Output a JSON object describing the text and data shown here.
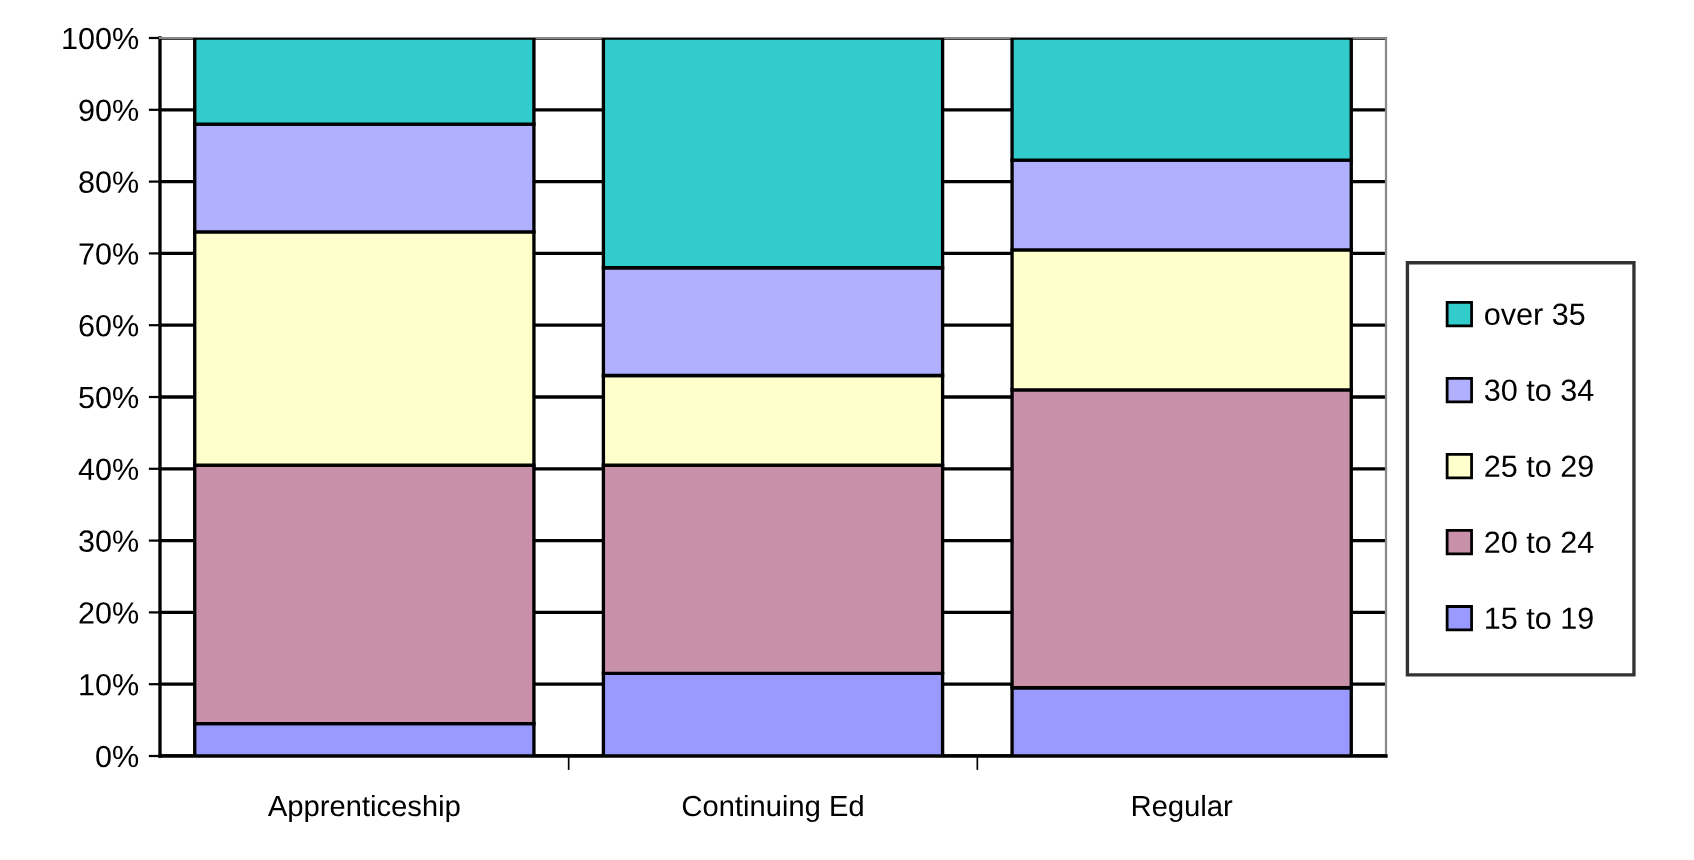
{
  "chart_data": {
    "type": "bar",
    "stacked": true,
    "categories": [
      "Apprenticeship",
      "Continuing Ed",
      "Regular"
    ],
    "series": [
      {
        "name": "15 to 19",
        "color": "#9999ff",
        "values": [
          4.5,
          11.5,
          9.5
        ]
      },
      {
        "name": "20 to 24",
        "color": "#c990aa",
        "values": [
          36,
          29,
          41.5
        ]
      },
      {
        "name": "25 to 29",
        "color": "#ffffcc",
        "values": [
          32.5,
          12.5,
          19.5
        ]
      },
      {
        "name": "30 to 34",
        "color": "#b0b0ff",
        "values": [
          15,
          15,
          12.5
        ]
      },
      {
        "name": "over 35",
        "color": "#33cccc",
        "values": [
          12,
          32,
          17
        ]
      }
    ],
    "ylim": [
      0,
      100
    ],
    "yticks": [
      {
        "value": 0,
        "label": "0%"
      },
      {
        "value": 10,
        "label": "10%"
      },
      {
        "value": 20,
        "label": "20%"
      },
      {
        "value": 30,
        "label": "30%"
      },
      {
        "value": 40,
        "label": "40%"
      },
      {
        "value": 50,
        "label": "50%"
      },
      {
        "value": 60,
        "label": "60%"
      },
      {
        "value": 70,
        "label": "70%"
      },
      {
        "value": 80,
        "label": "80%"
      },
      {
        "value": 90,
        "label": "90%"
      },
      {
        "value": 100,
        "label": "100%"
      }
    ],
    "grid": "y",
    "legend": "right"
  }
}
